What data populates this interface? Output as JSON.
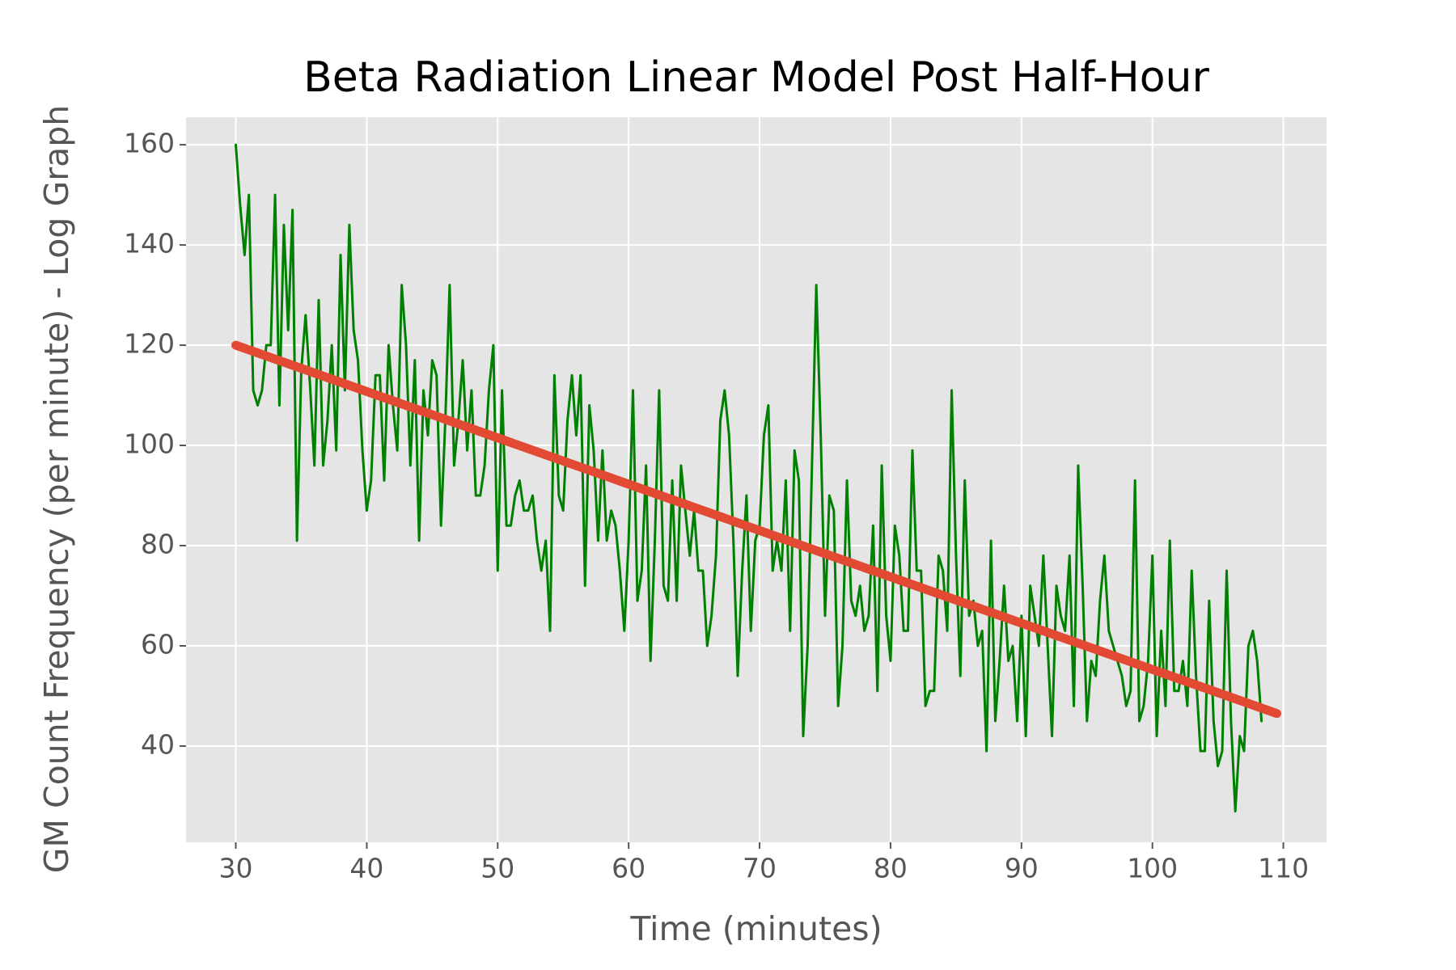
{
  "chart_data": {
    "type": "line",
    "title": "Beta Radiation Linear Model Post Half-Hour",
    "x_label": "Time (minutes)",
    "y_label": "GM Count Frequency (per minute) - Log Graph",
    "xlim": [
      26.2,
      113.3
    ],
    "ylim": [
      20.8,
      165.5
    ],
    "xticks": [
      30,
      40,
      50,
      60,
      70,
      80,
      90,
      100,
      110
    ],
    "yticks": [
      40,
      60,
      80,
      100,
      120,
      140,
      160
    ],
    "grid": true,
    "background": "#e5e5e5",
    "series": [
      {
        "color": "#008000",
        "width": 3,
        "x": [
          30,
          30.33,
          30.67,
          31,
          31.33,
          31.67,
          32,
          32.33,
          32.67,
          33,
          33.33,
          33.67,
          34,
          34.33,
          34.67,
          35,
          35.33,
          35.67,
          36,
          36.33,
          36.67,
          37,
          37.33,
          37.67,
          38,
          38.33,
          38.67,
          39,
          39.33,
          39.67,
          40,
          40.33,
          40.67,
          41,
          41.33,
          41.67,
          42,
          42.33,
          42.67,
          43,
          43.33,
          43.67,
          44,
          44.33,
          44.67,
          45,
          45.33,
          45.67,
          46,
          46.33,
          46.67,
          47,
          47.33,
          47.67,
          48,
          48.33,
          48.67,
          49,
          49.33,
          49.67,
          50,
          50.33,
          50.67,
          51,
          51.33,
          51.67,
          52,
          52.33,
          52.67,
          53,
          53.33,
          53.67,
          54,
          54.33,
          54.67,
          55,
          55.33,
          55.67,
          56,
          56.33,
          56.67,
          57,
          57.33,
          57.67,
          58,
          58.33,
          58.67,
          59,
          59.33,
          59.67,
          60,
          60.33,
          60.67,
          61,
          61.33,
          61.67,
          62,
          62.33,
          62.67,
          63,
          63.33,
          63.67,
          64,
          64.33,
          64.67,
          65,
          65.33,
          65.67,
          66,
          66.33,
          66.67,
          67,
          67.33,
          67.67,
          68,
          68.33,
          68.67,
          69,
          69.33,
          69.67,
          70,
          70.33,
          70.67,
          71,
          71.33,
          71.67,
          72,
          72.33,
          72.67,
          73,
          73.33,
          73.67,
          74,
          74.33,
          74.67,
          75,
          75.33,
          75.67,
          76,
          76.33,
          76.67,
          77,
          77.33,
          77.67,
          78,
          78.33,
          78.67,
          79,
          79.33,
          79.67,
          80,
          80.33,
          80.67,
          81,
          81.33,
          81.67,
          82,
          82.33,
          82.67,
          83,
          83.33,
          83.67,
          84,
          84.33,
          84.67,
          85,
          85.33,
          85.67,
          86,
          86.33,
          86.67,
          87,
          87.33,
          87.67,
          88,
          88.33,
          88.67,
          89,
          89.33,
          89.67,
          90,
          90.33,
          90.67,
          91,
          91.33,
          91.67,
          92,
          92.33,
          92.67,
          93,
          93.33,
          93.67,
          94,
          94.33,
          94.67,
          95,
          95.33,
          95.67,
          96,
          96.33,
          96.67,
          97,
          97.33,
          97.67,
          98,
          98.33,
          98.67,
          99,
          99.33,
          99.67,
          100,
          100.33,
          100.67,
          101,
          101.33,
          101.67,
          102,
          102.33,
          102.67,
          103,
          103.33,
          103.67,
          104,
          104.33,
          104.67,
          105,
          105.33,
          105.67,
          106,
          106.33,
          106.67,
          107,
          107.33,
          107.67,
          108,
          108.33
        ],
        "values": [
          160,
          148,
          138,
          150,
          111,
          108,
          111,
          120,
          120,
          150,
          108,
          144,
          123,
          147,
          81,
          115,
          126,
          112,
          96,
          129,
          96,
          105,
          120,
          99,
          138,
          111,
          144,
          123,
          117,
          99,
          87,
          93,
          114,
          114,
          93,
          120,
          108,
          99,
          132,
          120,
          96,
          117,
          81,
          111,
          102,
          117,
          114,
          84,
          105,
          132,
          96,
          105,
          117,
          99,
          111,
          90,
          90,
          96,
          111,
          120,
          75,
          111,
          84,
          84,
          90,
          93,
          87,
          87,
          90,
          81,
          75,
          81,
          63,
          114,
          90,
          87,
          105,
          114,
          102,
          114,
          72,
          108,
          99,
          81,
          99,
          81,
          87,
          84,
          75,
          63,
          81,
          111,
          69,
          75,
          96,
          57,
          81,
          111,
          72,
          69,
          93,
          69,
          96,
          87,
          78,
          87,
          75,
          75,
          60,
          66,
          78,
          105,
          111,
          102,
          81,
          54,
          75,
          90,
          63,
          81,
          84,
          102,
          108,
          75,
          81,
          75,
          93,
          63,
          99,
          93,
          42,
          60,
          96,
          132,
          102,
          66,
          90,
          87,
          48,
          60,
          93,
          69,
          66,
          72,
          63,
          66,
          84,
          51,
          96,
          66,
          57,
          84,
          78,
          63,
          63,
          99,
          75,
          75,
          48,
          51,
          51,
          78,
          75,
          63,
          111,
          78,
          54,
          93,
          66,
          69,
          60,
          63,
          39,
          81,
          45,
          57,
          72,
          57,
          60,
          45,
          66,
          42,
          72,
          66,
          60,
          78,
          60,
          42,
          72,
          66,
          63,
          78,
          48,
          96,
          72,
          45,
          57,
          54,
          69,
          78,
          63,
          60,
          57,
          54,
          48,
          51,
          93,
          45,
          48,
          57,
          78,
          42,
          63,
          48,
          81,
          51,
          51,
          57,
          48,
          75,
          54,
          39,
          39,
          69,
          45,
          36,
          39,
          75,
          45,
          27,
          42,
          39,
          60,
          63,
          57,
          45
        ]
      },
      {
        "color": "#e24a33",
        "width": 11,
        "x": [
          30,
          109.5
        ],
        "values": [
          120,
          46.5
        ]
      }
    ]
  }
}
